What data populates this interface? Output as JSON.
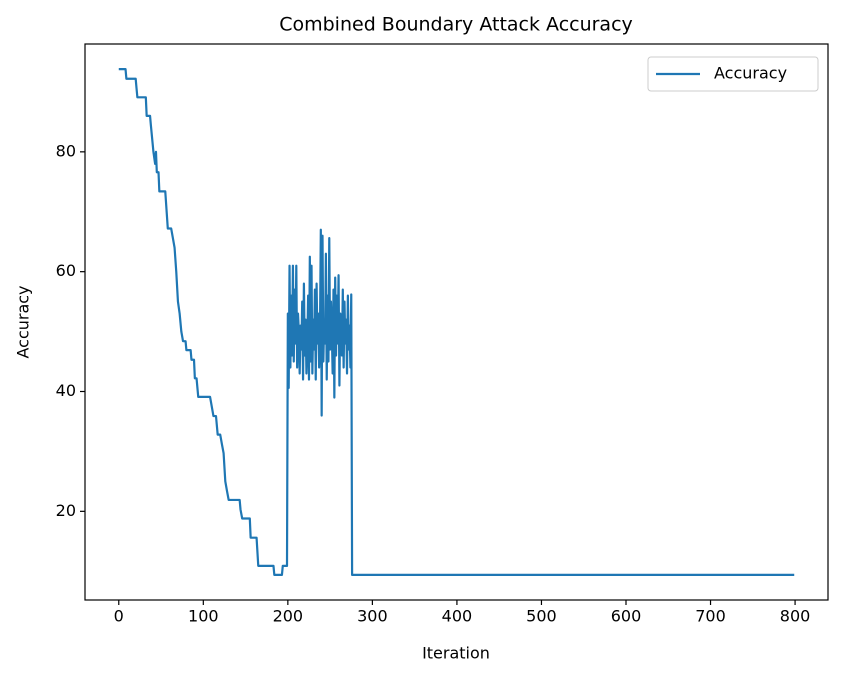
{
  "chart_data": {
    "type": "line",
    "title": "Combined Boundary Attack Accuracy",
    "x_label": "Iteration",
    "y_label": "Accuracy",
    "x": [
      0,
      8,
      9,
      20,
      21,
      22,
      32,
      33,
      37,
      38,
      41,
      43,
      44,
      45,
      47,
      48,
      55,
      58,
      62,
      64,
      66,
      68,
      70,
      72,
      74,
      76,
      79,
      80,
      85,
      86,
      89,
      90,
      92,
      94,
      108,
      112,
      115,
      117,
      120,
      122,
      124,
      126,
      128,
      130,
      143,
      144,
      146,
      155,
      156,
      163,
      165,
      183,
      184,
      193,
      194,
      199,
      200,
      201,
      202,
      203,
      204,
      205,
      206,
      207,
      208,
      209,
      210,
      211,
      212,
      213,
      214,
      215,
      216,
      217,
      218,
      219,
      220,
      221,
      222,
      223,
      224,
      225,
      226,
      227,
      228,
      229,
      230,
      231,
      232,
      233,
      234,
      235,
      236,
      237,
      238,
      239,
      240,
      241,
      242,
      243,
      244,
      245,
      246,
      247,
      248,
      249,
      250,
      251,
      252,
      253,
      254,
      255,
      256,
      257,
      258,
      259,
      260,
      261,
      262,
      263,
      264,
      265,
      266,
      267,
      268,
      269,
      270,
      271,
      272,
      273,
      274,
      275,
      276,
      799
    ],
    "series": [
      {
        "name": "Accuracy",
        "color": "#1f77b4",
        "values": [
          93.8,
          93.8,
          92.2,
          92.2,
          90.6,
          89.1,
          89.1,
          86,
          86,
          84.4,
          80,
          78,
          80,
          76.6,
          76.6,
          73.4,
          73.4,
          67.2,
          67.2,
          65.6,
          64,
          60,
          55,
          53,
          50,
          48.4,
          48.4,
          46.9,
          46.9,
          45.3,
          45.3,
          42.2,
          42.2,
          39.1,
          39.1,
          35.9,
          35.9,
          32.8,
          32.8,
          31.2,
          29.7,
          25,
          23.4,
          21.9,
          21.9,
          20.3,
          18.8,
          18.8,
          15.6,
          15.6,
          10.9,
          10.9,
          9.4,
          9.4,
          10.9,
          10.9,
          53,
          40.6,
          61,
          44,
          56,
          46,
          61,
          45,
          57,
          48,
          61,
          44,
          53,
          50,
          43,
          51,
          47,
          55,
          42,
          58,
          46,
          52,
          43,
          48,
          56,
          42,
          62.5,
          45,
          61,
          43,
          52,
          47,
          57,
          42,
          58,
          48,
          53,
          44,
          50,
          67,
          36,
          66,
          45,
          52,
          48,
          63,
          42,
          56,
          45,
          65.6,
          47,
          55,
          50,
          43,
          57,
          39,
          59,
          46,
          56,
          48,
          59.4,
          41,
          53,
          50,
          46,
          57,
          44,
          55,
          48,
          52,
          43,
          56,
          47,
          51,
          44,
          56.2,
          9.4,
          9.4
        ]
      }
    ],
    "xlim": [
      -39.95,
      838.95
    ],
    "ylim": [
      5.2,
      98.0
    ],
    "xticks": [
      0,
      100,
      200,
      300,
      400,
      500,
      600,
      700,
      800
    ],
    "yticks": [
      20,
      40,
      60,
      80
    ],
    "grid": false,
    "legend": "upper right"
  }
}
